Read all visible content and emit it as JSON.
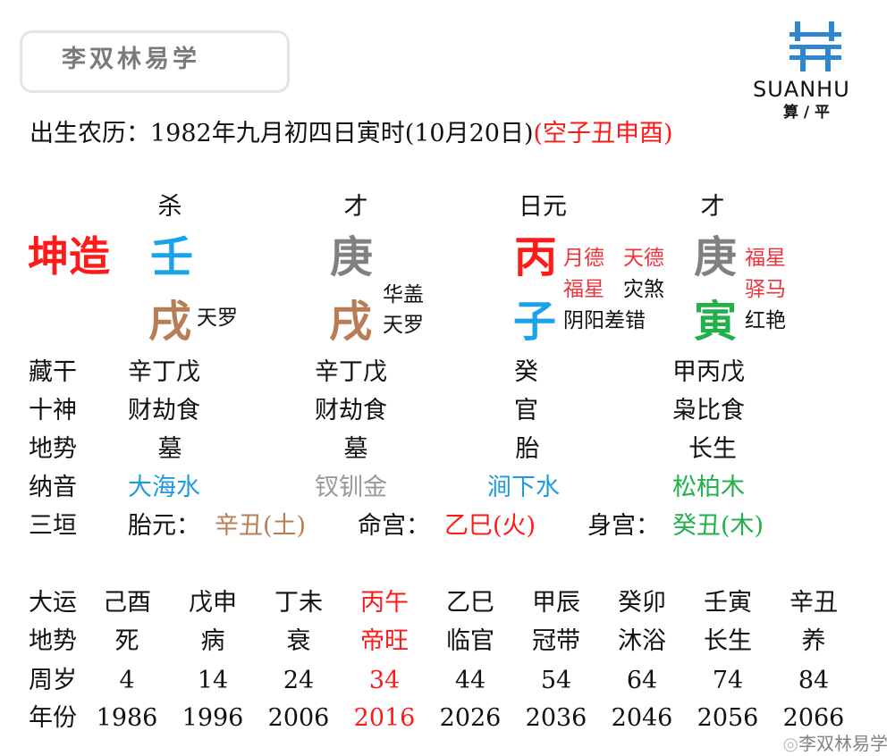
{
  "brand": {
    "title": "李双林易学",
    "logo_text": "SUANHU",
    "logo_sub": "算 / 平",
    "watermark": "李双林易学"
  },
  "colors": {
    "red": "#ff1a1a",
    "blue": "#1aa3e8",
    "gray": "#808080",
    "brown": "#b87d55",
    "green": "#22b04b",
    "shensha_red": "#f0323c",
    "nayin_blue": "#1e9be0"
  },
  "header": {
    "birth": "出生农历：1982年九月初四日寅时(10月20日)",
    "kong": "(空子丑申酉)"
  },
  "gender_label": "坤造",
  "pillars": [
    {
      "god": "杀",
      "stem": "壬",
      "branch": "戌",
      "shensha": [
        "天罗"
      ]
    },
    {
      "god": "才",
      "stem": "庚",
      "branch": "戌",
      "shensha": [
        "华盖",
        "天罗"
      ]
    },
    {
      "god": "日元",
      "stem": "丙",
      "branch": "子",
      "shensha": [
        "月德",
        "天德",
        "福星",
        "灾煞",
        "阴阳差错"
      ]
    },
    {
      "god": "才",
      "stem": "庚",
      "branch": "寅",
      "shensha": [
        "福星",
        "驿马",
        "红艳"
      ]
    }
  ],
  "rows": [
    {
      "label": "藏干",
      "values": [
        "辛丁戊",
        "辛丁戊",
        "癸",
        "甲丙戊"
      ]
    },
    {
      "label": "十神",
      "values": [
        "财劫食",
        "财劫食",
        "官",
        "枭比食"
      ]
    },
    {
      "label": "地势",
      "values": [
        "墓",
        "墓",
        "胎",
        "长生"
      ]
    },
    {
      "label": "纳音",
      "values": [
        "大海水",
        "钗钏金",
        "涧下水",
        "松柏木"
      ]
    }
  ],
  "sanyuan": {
    "label": "三垣",
    "taiyuan_label": "胎元：",
    "taiyuan": "辛丑(土)",
    "minggong_label": "命宫：",
    "minggong": "乙巳(火)",
    "shengong_label": "身宫：",
    "shengong": "癸丑(木)"
  },
  "dayun": {
    "labels": [
      "大运",
      "地势",
      "周岁",
      "年份"
    ],
    "columns": [
      {
        "gz": "己酉",
        "ds": "死",
        "age": "4",
        "year": "1986"
      },
      {
        "gz": "戊申",
        "ds": "病",
        "age": "14",
        "year": "1996"
      },
      {
        "gz": "丁未",
        "ds": "衰",
        "age": "24",
        "year": "2006"
      },
      {
        "gz": "丙午",
        "ds": "帝旺",
        "age": "34",
        "year": "2016",
        "current": true
      },
      {
        "gz": "乙巳",
        "ds": "临官",
        "age": "44",
        "year": "2026"
      },
      {
        "gz": "甲辰",
        "ds": "冠带",
        "age": "54",
        "year": "2036"
      },
      {
        "gz": "癸卯",
        "ds": "沐浴",
        "age": "64",
        "year": "2046"
      },
      {
        "gz": "壬寅",
        "ds": "长生",
        "age": "74",
        "year": "2056"
      },
      {
        "gz": "辛丑",
        "ds": "养",
        "age": "84",
        "year": "2066"
      }
    ]
  }
}
